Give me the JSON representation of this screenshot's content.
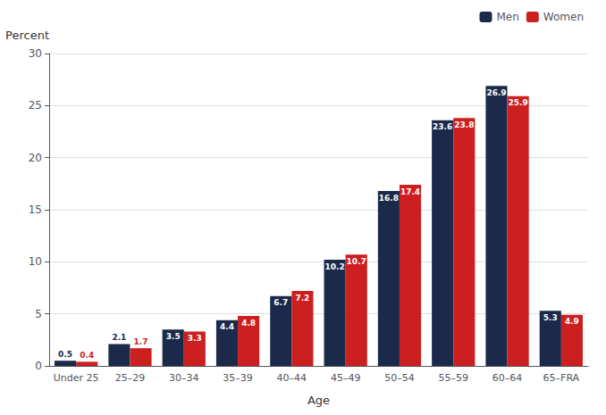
{
  "chart_data": {
    "type": "bar",
    "xlabel": "Age",
    "ylabel": "Percent",
    "categories": [
      "Under 25",
      "25–29",
      "30–34",
      "35–39",
      "40–44",
      "45–49",
      "50–54",
      "55–59",
      "60–64",
      "65–FRA"
    ],
    "series": [
      {
        "name": "Men",
        "color": "#1b2a4a",
        "values": [
          0.5,
          2.1,
          3.5,
          4.4,
          6.7,
          10.2,
          16.8,
          23.6,
          26.9,
          5.3
        ]
      },
      {
        "name": "Women",
        "color": "#cc1f1f",
        "values": [
          0.4,
          1.7,
          3.3,
          4.8,
          7.2,
          10.7,
          17.4,
          23.8,
          25.9,
          4.9
        ]
      }
    ],
    "ylim": [
      0,
      30
    ],
    "yticks": [
      0,
      5,
      10,
      15,
      20,
      25,
      30
    ],
    "grid": true,
    "legend": "upper right",
    "data_labels": true
  }
}
